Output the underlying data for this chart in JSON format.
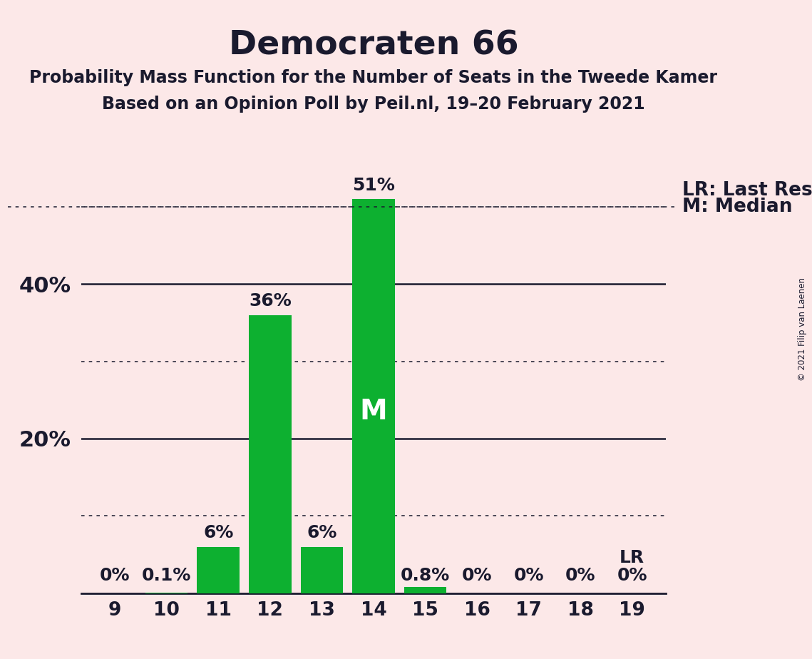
{
  "title": "Democraten 66",
  "subtitle1": "Probability Mass Function for the Number of Seats in the Tweede Kamer",
  "subtitle2": "Based on an Opinion Poll by Peil.nl, 19–20 February 2021",
  "copyright": "© 2021 Filip van Laenen",
  "categories": [
    9,
    10,
    11,
    12,
    13,
    14,
    15,
    16,
    17,
    18,
    19
  ],
  "values": [
    0.0,
    0.1,
    6.0,
    36.0,
    6.0,
    51.0,
    0.8,
    0.0,
    0.0,
    0.0,
    0.0
  ],
  "bar_labels": [
    "0%",
    "0.1%",
    "6%",
    "36%",
    "6%",
    "51%",
    "0.8%",
    "0%",
    "0%",
    "0%",
    "0%"
  ],
  "bar_color": "#0db030",
  "background_color": "#fce8e8",
  "text_color": "#1a1a2e",
  "median_bar": 14,
  "lr_bar": 19,
  "median_label": "M",
  "lr_label": "LR",
  "legend_lr": "LR: Last Result",
  "legend_m": "M: Median",
  "ylim": [
    0,
    58
  ],
  "dotted_lines": [
    10,
    30,
    50
  ],
  "solid_lines": [
    20,
    40
  ],
  "title_fontsize": 34,
  "subtitle_fontsize": 17,
  "tick_fontsize": 19,
  "bar_label_fontsize": 18,
  "legend_fontsize": 19,
  "median_label_fontsize": 28,
  "ytick_fontsize": 22
}
